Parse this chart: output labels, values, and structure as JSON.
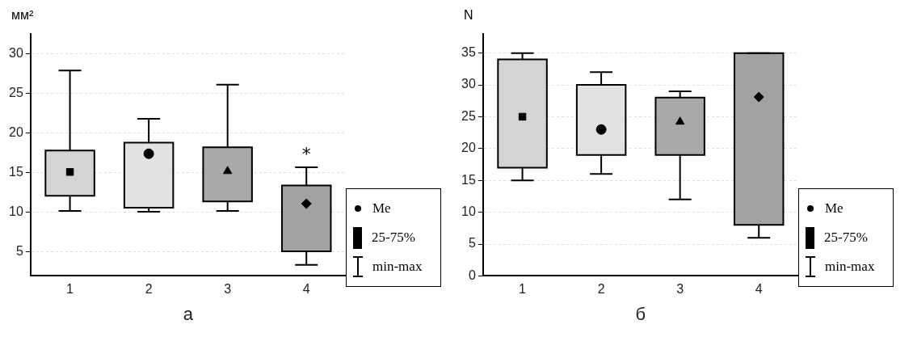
{
  "chart_data": [
    {
      "type": "box",
      "ylabel": "мм²",
      "xlabel": "а",
      "categories": [
        "1",
        "2",
        "3",
        "4"
      ],
      "boxes": [
        {
          "low": 10.2,
          "q1": 12.1,
          "median": 15.1,
          "q3": 17.8,
          "high": 27.9
        },
        {
          "low": 10.1,
          "q1": 10.6,
          "median": 17.4,
          "q3": 18.8,
          "high": 21.8
        },
        {
          "low": 10.2,
          "q1": 11.4,
          "median": 15.2,
          "q3": 18.2,
          "high": 26.1
        },
        {
          "low": 3.4,
          "q1": 5.1,
          "median": 11.1,
          "q3": 13.4,
          "high": 15.7
        }
      ],
      "colors": [
        "#d4d4d4",
        "#e2e2e2",
        "#a9a9a9",
        "#a2a2a2"
      ],
      "ylim": [
        2,
        32.5
      ],
      "yticks": [
        5,
        10,
        15,
        20,
        25,
        30
      ],
      "grid": "y",
      "annotations": [
        {
          "text": "*",
          "x": "4",
          "y": 15.7
        },
        "Me",
        "25-75%",
        "min-max"
      ]
    },
    {
      "type": "box",
      "ylabel": "N",
      "xlabel": "б",
      "categories": [
        "1",
        "2",
        "3",
        "4"
      ],
      "boxes": [
        {
          "low": 15,
          "q1": 17,
          "median": 25,
          "q3": 34,
          "high": 35
        },
        {
          "low": 16,
          "q1": 19,
          "median": 23,
          "q3": 30,
          "high": 32
        },
        {
          "low": 12,
          "q1": 19,
          "median": 24.2,
          "q3": 28,
          "high": 29
        },
        {
          "low": 6,
          "q1": 8,
          "median": 28.1,
          "q3": 35,
          "high": 35
        }
      ],
      "colors": [
        "#d4d4d4",
        "#e2e2e2",
        "#a9a9a9",
        "#a2a2a2"
      ],
      "ylim": [
        0,
        38
      ],
      "yticks": [
        0,
        5,
        10,
        15,
        20,
        25,
        30,
        35
      ],
      "grid": "y",
      "annotations": [
        "Me",
        "25-75%",
        "min-max"
      ]
    }
  ]
}
